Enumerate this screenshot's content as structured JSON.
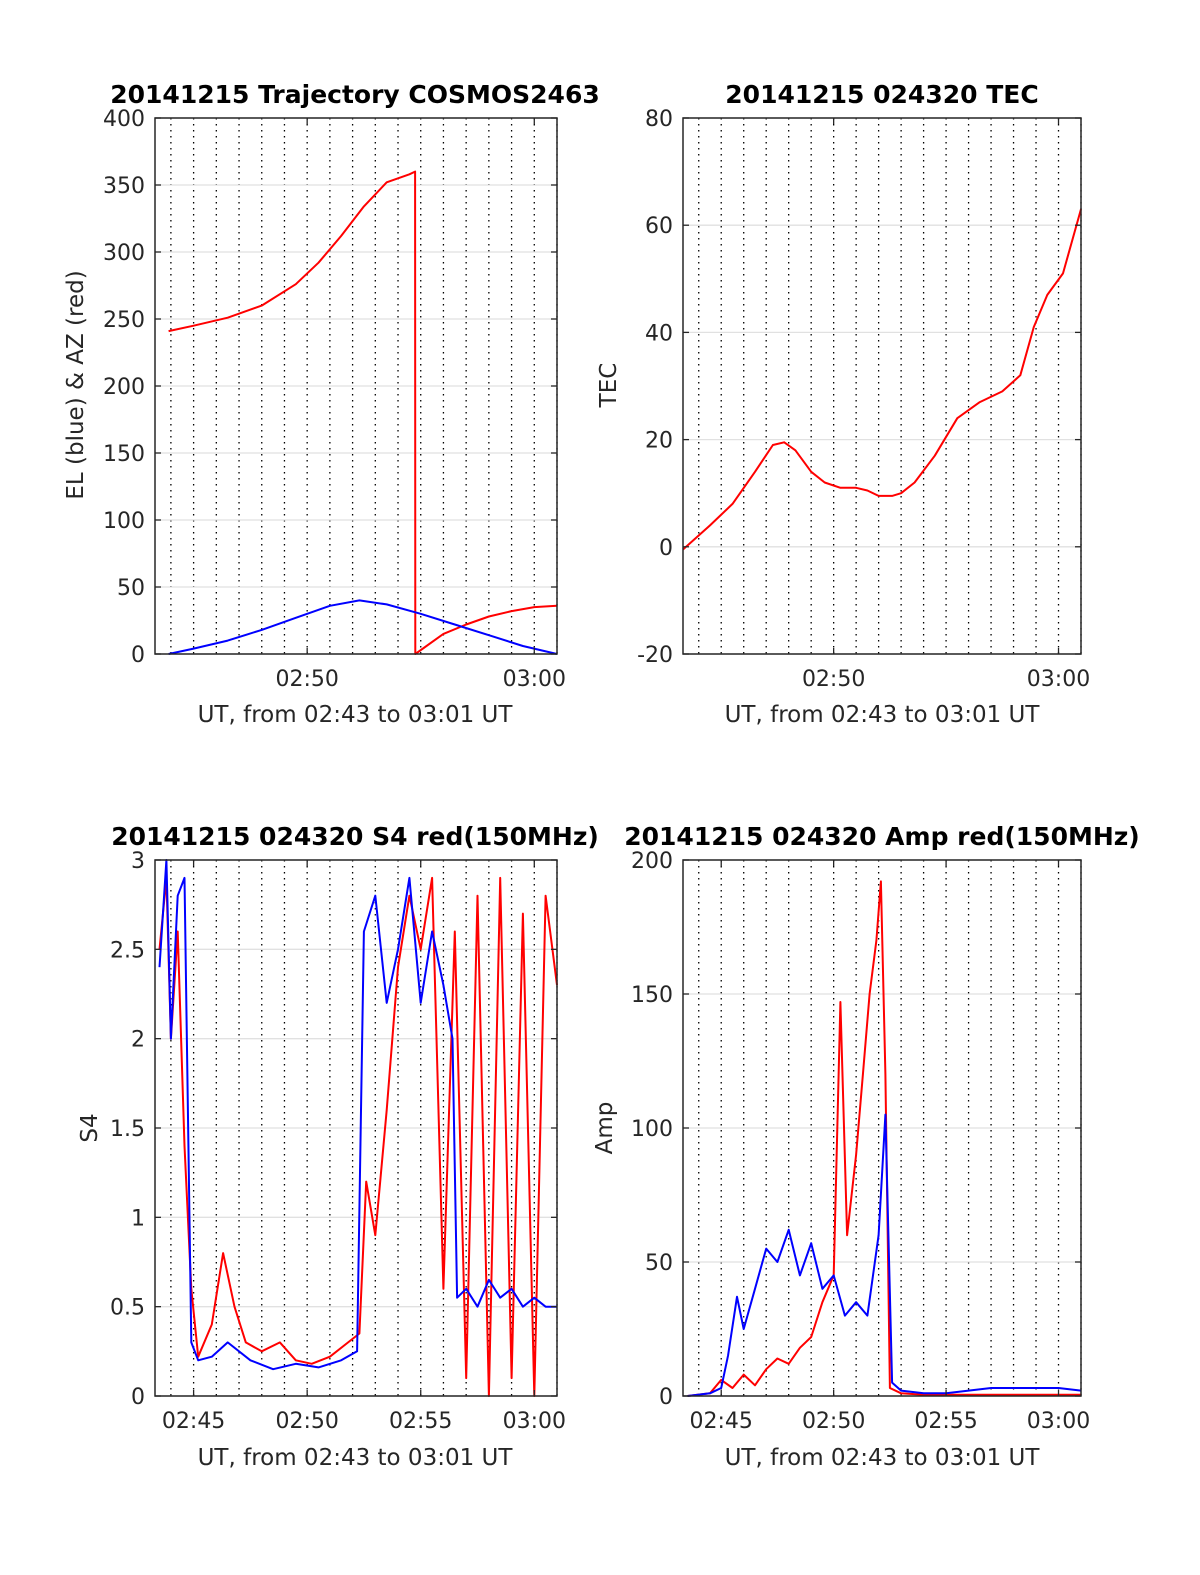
{
  "charts": [
    {
      "title": "20141215 Trajectory COSMOS2463",
      "ylabel": "EL (blue) & AZ (red)",
      "xlabel": "UT, from 02:43 to 03:01 UT",
      "yticks": [
        "0",
        "50",
        "100",
        "150",
        "200",
        "250",
        "300",
        "350",
        "400"
      ],
      "xticks": [
        "02:50",
        "03:00"
      ]
    },
    {
      "title": "20141215 024320 TEC",
      "ylabel": "TEC",
      "xlabel": "UT, from 02:43 to 03:01 UT",
      "yticks": [
        "-20",
        "0",
        "20",
        "40",
        "60",
        "80"
      ],
      "xticks": [
        "02:50",
        "03:00"
      ]
    },
    {
      "title": "20141215 024320 S4 red(150MHz)",
      "ylabel": "S4",
      "xlabel": "UT, from 02:43 to 03:01 UT",
      "yticks": [
        "0",
        "0.5",
        "1",
        "1.5",
        "2",
        "2.5",
        "3"
      ],
      "xticks": [
        "02:45",
        "02:50",
        "02:55",
        "03:00"
      ]
    },
    {
      "title": "20141215 024320 Amp red(150MHz)",
      "ylabel": "Amp",
      "xlabel": "UT, from 02:43 to 03:01 UT",
      "yticks": [
        "0",
        "50",
        "100",
        "150",
        "200"
      ],
      "xticks": [
        "02:45",
        "02:50",
        "02:55",
        "03:00"
      ]
    }
  ],
  "chart_data": [
    {
      "type": "line",
      "title": "20141215 Trajectory COSMOS2463",
      "xlabel": "UT, from 02:43 to 03:01 UT",
      "ylabel": "EL (blue) & AZ (red)",
      "x_unit": "minutes after 02:00 UT",
      "xlim": [
        43.3,
        61.0
      ],
      "ylim": [
        0,
        400
      ],
      "grid": "dotted vertical, light horizontal",
      "series": [
        {
          "color": "#ff0000",
          "x": [
            43.9,
            45,
            46.5,
            48,
            49.5,
            50.5,
            51.5,
            52.5,
            53.5,
            54.5,
            54.75,
            54.76,
            56,
            57,
            58,
            59,
            60,
            61
          ],
          "y": [
            241,
            245,
            251,
            260,
            276,
            292,
            312,
            334,
            352,
            358,
            360,
            0,
            15,
            22,
            28,
            32,
            35,
            36
          ]
        },
        {
          "color": "#0000ff",
          "x": [
            43.9,
            45,
            46.5,
            48,
            49.5,
            51,
            52.3,
            53.5,
            55,
            56.5,
            58,
            59.5,
            61
          ],
          "y": [
            0,
            4,
            10,
            18,
            27,
            36,
            40,
            37,
            30,
            22,
            14,
            6,
            0
          ]
        }
      ]
    },
    {
      "type": "line",
      "title": "20141215 024320 TEC",
      "xlabel": "UT, from 02:43 to 03:01 UT",
      "ylabel": "TEC",
      "x_unit": "minutes after 02:00 UT",
      "xlim": [
        43.3,
        61.0
      ],
      "ylim": [
        -20,
        80
      ],
      "grid": "dotted vertical, light horizontal",
      "series": [
        {
          "color": "#ff0000",
          "x": [
            43.3,
            44.5,
            45.5,
            46.5,
            47.3,
            47.8,
            48.3,
            49.0,
            49.6,
            50.3,
            51.0,
            51.5,
            52.0,
            52.6,
            53.0,
            53.6,
            54.5,
            55.5,
            56.5,
            57.5,
            58.3,
            58.9,
            59.5,
            60.2,
            61.0
          ],
          "y": [
            -0.5,
            4,
            8,
            14,
            19,
            19.5,
            18,
            14,
            12,
            11,
            11,
            10.5,
            9.5,
            9.5,
            10,
            12,
            17,
            24,
            27,
            29,
            32,
            41,
            47,
            51,
            63
          ]
        }
      ]
    },
    {
      "type": "line",
      "title": "20141215 024320 S4 red(150MHz)",
      "xlabel": "UT, from 02:43 to 03:01 UT",
      "ylabel": "S4",
      "x_unit": "minutes after 02:00 UT",
      "xlim": [
        43.3,
        61.0
      ],
      "ylim": [
        0,
        3
      ],
      "grid": "dotted vertical, light horizontal",
      "series": [
        {
          "color": "#ff0000",
          "x": [
            43.5,
            43.8,
            44.0,
            44.3,
            44.6,
            44.9,
            45.2,
            45.8,
            46.3,
            46.8,
            47.3,
            48.0,
            48.8,
            49.5,
            50.2,
            51.0,
            51.8,
            52.3,
            52.6,
            53.0,
            53.5,
            54.0,
            54.5,
            55.0,
            55.5,
            56.0,
            56.5,
            57.0,
            57.5,
            58.0,
            58.5,
            59.0,
            59.5,
            60.0,
            60.5,
            61.0
          ],
          "y": [
            2.5,
            2.9,
            2.0,
            2.6,
            1.4,
            0.6,
            0.22,
            0.4,
            0.8,
            0.5,
            0.3,
            0.25,
            0.3,
            0.2,
            0.18,
            0.22,
            0.3,
            0.35,
            1.2,
            0.9,
            1.6,
            2.4,
            2.8,
            2.5,
            2.9,
            0.6,
            2.6,
            0.1,
            2.8,
            0.0,
            2.9,
            0.1,
            2.7,
            0.0,
            2.8,
            2.3
          ]
        },
        {
          "color": "#0000ff",
          "x": [
            43.5,
            43.8,
            44.0,
            44.3,
            44.6,
            44.9,
            45.2,
            45.8,
            46.5,
            47.5,
            48.5,
            49.5,
            50.5,
            51.5,
            52.2,
            52.5,
            53.0,
            53.5,
            54.0,
            54.5,
            55.0,
            55.5,
            56.0,
            56.4,
            56.6,
            57.0,
            57.5,
            58.0,
            58.5,
            59.0,
            59.5,
            60.0,
            60.5,
            61.0
          ],
          "y": [
            2.4,
            3.0,
            2.0,
            2.8,
            2.9,
            0.3,
            0.2,
            0.22,
            0.3,
            0.2,
            0.15,
            0.18,
            0.16,
            0.2,
            0.25,
            2.6,
            2.8,
            2.2,
            2.5,
            2.9,
            2.2,
            2.6,
            2.3,
            2.0,
            0.55,
            0.6,
            0.5,
            0.65,
            0.55,
            0.6,
            0.5,
            0.55,
            0.5,
            0.5
          ]
        }
      ]
    },
    {
      "type": "line",
      "title": "20141215 024320 Amp red(150MHz)",
      "xlabel": "UT, from 02:43 to 03:01 UT",
      "ylabel": "Amp",
      "x_unit": "minutes after 02:00 UT",
      "xlim": [
        43.3,
        61.0
      ],
      "ylim": [
        0,
        200
      ],
      "grid": "dotted vertical, light horizontal",
      "series": [
        {
          "color": "#ff0000",
          "x": [
            43.5,
            44.5,
            45.0,
            45.5,
            46.0,
            46.5,
            47.0,
            47.5,
            48.0,
            48.5,
            49.0,
            49.5,
            50.0,
            50.3,
            50.6,
            51.0,
            51.3,
            51.6,
            51.9,
            52.1,
            52.3,
            52.5,
            53.0,
            54.0,
            56.0,
            58.0,
            61.0
          ],
          "y": [
            0,
            1,
            6,
            3,
            8,
            4,
            10,
            14,
            12,
            18,
            22,
            35,
            45,
            147,
            60,
            90,
            120,
            150,
            170,
            192,
            120,
            3,
            1,
            0.5,
            0.5,
            0.5,
            0.5
          ]
        },
        {
          "color": "#0000ff",
          "x": [
            43.5,
            44.5,
            45.0,
            45.3,
            45.7,
            46.0,
            46.5,
            47.0,
            47.5,
            48.0,
            48.5,
            49.0,
            49.5,
            50.0,
            50.5,
            51.0,
            51.5,
            52.0,
            52.3,
            52.6,
            53.0,
            54.0,
            55.0,
            56.0,
            57.0,
            58.0,
            59.0,
            60.0,
            61.0
          ],
          "y": [
            0,
            1,
            3,
            15,
            37,
            25,
            40,
            55,
            50,
            62,
            45,
            57,
            40,
            45,
            30,
            35,
            30,
            60,
            105,
            5,
            2,
            1,
            1,
            2,
            3,
            3,
            3,
            3,
            2
          ]
        }
      ]
    }
  ]
}
